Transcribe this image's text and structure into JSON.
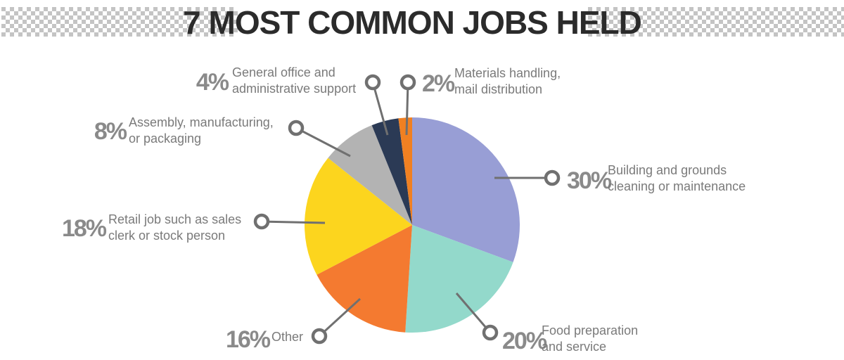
{
  "title": "7 MOST COMMON JOBS HELD",
  "colors": {
    "title": "#2b2b2b",
    "label_gray": "#7a7a7a",
    "leader_gray": "#707070",
    "checker": "#c4c4c4"
  },
  "chart_data": {
    "type": "pie",
    "title": "7 MOST COMMON JOBS HELD",
    "start": "12 o'clock, clockwise",
    "slices": [
      {
        "label_lines": [
          "Building and grounds",
          "cleaning or maintenance"
        ],
        "value": 30,
        "pct": "30%",
        "color": "#989ed5"
      },
      {
        "label_lines": [
          "Food preparation",
          "and service"
        ],
        "value": 20,
        "pct": "20%",
        "color": "#93d9cb"
      },
      {
        "label_lines": [
          "Other"
        ],
        "value": 16,
        "pct": "16%",
        "color": "#f47a30"
      },
      {
        "label_lines": [
          "Retail job such as sales",
          "clerk or stock person"
        ],
        "value": 18,
        "pct": "18%",
        "color": "#fcd51e"
      },
      {
        "label_lines": [
          "Assembly, manufacturing,",
          "or packaging"
        ],
        "value": 8,
        "pct": "8%",
        "color": "#b3b3b3"
      },
      {
        "label_lines": [
          "General office and",
          "administrative support"
        ],
        "value": 4,
        "pct": "4%",
        "color": "#2b3a55"
      },
      {
        "label_lines": [
          "Materials handling,",
          "mail distribution"
        ],
        "value": 2,
        "pct": "2%",
        "color": "#f08022"
      }
    ]
  }
}
